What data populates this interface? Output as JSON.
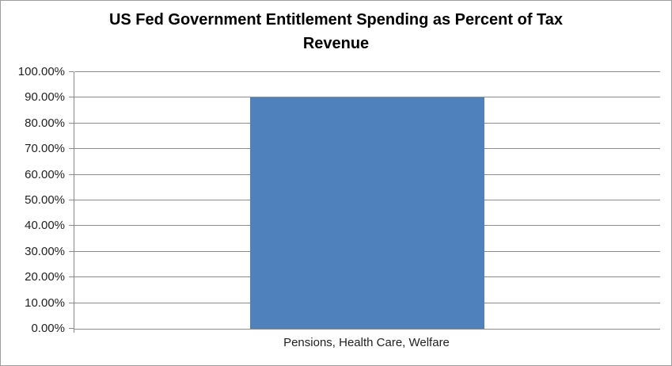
{
  "chart_data": {
    "type": "bar",
    "title": "US Fed Government Entitlement Spending as Percent of Tax Revenue",
    "categories": [
      "Pensions, Health Care, Welfare"
    ],
    "values": [
      90
    ],
    "xlabel": "",
    "ylabel": "",
    "ylim": [
      0,
      100
    ],
    "ytick_step": 10,
    "yticks": [
      "0.00%",
      "10.00%",
      "20.00%",
      "30.00%",
      "40.00%",
      "50.00%",
      "60.00%",
      "70.00%",
      "80.00%",
      "90.00%",
      "100.00%"
    ],
    "grid": true,
    "legend": "none",
    "colors": {
      "bar": "#4F81BD",
      "gridline": "#8C8C8C",
      "axis": "#8C8C8C",
      "text": "#1f1f1f",
      "title": "#000000",
      "border": "#9d9d9d",
      "background": "#ffffff"
    }
  }
}
